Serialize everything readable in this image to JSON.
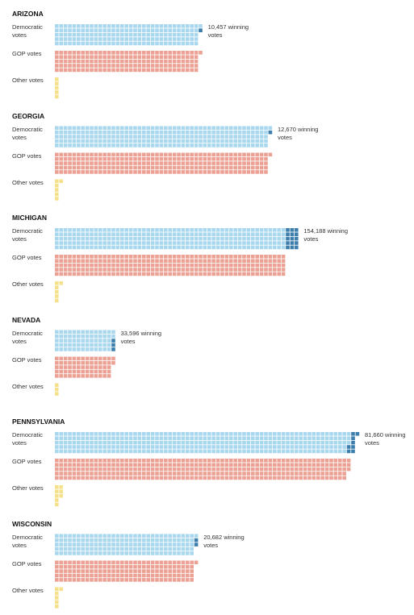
{
  "chart_data": [
    {
      "type": "waffle",
      "title": "ARIZONA",
      "square_value": 10000,
      "series": [
        {
          "name": "Democratic votes",
          "color": "#a9d7ee",
          "value": 1670000
        },
        {
          "name": "GOP votes",
          "color": "#eba194",
          "value": 1660000
        },
        {
          "name": "Other votes",
          "color": "#f5e18c",
          "value": 50000
        }
      ],
      "margin": 10457,
      "margin_label": "10,457 winning votes",
      "margin_color": "#3d7eac"
    },
    {
      "type": "waffle",
      "title": "GEORGIA",
      "square_value": 10000,
      "series": [
        {
          "name": "Democratic votes",
          "color": "#a9d7ee",
          "value": 2470000
        },
        {
          "name": "GOP votes",
          "color": "#eba194",
          "value": 2460000
        },
        {
          "name": "Other votes",
          "color": "#f5e18c",
          "value": 60000
        }
      ],
      "margin": 12670,
      "margin_label": "12,670 winning votes",
      "margin_color": "#3d7eac"
    },
    {
      "type": "waffle",
      "title": "MICHIGAN",
      "square_value": 10000,
      "series": [
        {
          "name": "Democratic votes",
          "color": "#a9d7ee",
          "value": 2800000
        },
        {
          "name": "GOP votes",
          "color": "#eba194",
          "value": 2650000
        },
        {
          "name": "Other votes",
          "color": "#f5e18c",
          "value": 60000
        }
      ],
      "margin": 154188,
      "margin_label": "154,188 winning votes",
      "margin_color": "#3d7eac"
    },
    {
      "type": "waffle",
      "title": "NEVADA",
      "square_value": 10000,
      "series": [
        {
          "name": "Democratic votes",
          "color": "#a9d7ee",
          "value": 700000
        },
        {
          "name": "GOP votes",
          "color": "#eba194",
          "value": 670000
        },
        {
          "name": "Other votes",
          "color": "#f5e18c",
          "value": 30000
        }
      ],
      "margin": 33596,
      "margin_label": "33,596 winning votes",
      "margin_color": "#3d7eac"
    },
    {
      "type": "waffle",
      "title": "PENNSYLVANIA",
      "square_value": 10000,
      "series": [
        {
          "name": "Democratic votes",
          "color": "#a9d7ee",
          "value": 3460000
        },
        {
          "name": "GOP votes",
          "color": "#eba194",
          "value": 3380000
        },
        {
          "name": "Other votes",
          "color": "#f5e18c",
          "value": 80000
        }
      ],
      "margin": 81660,
      "margin_label": "81,660 winning votes",
      "margin_color": "#3d7eac"
    },
    {
      "type": "waffle",
      "title": "WISCONSIN",
      "square_value": 10000,
      "series": [
        {
          "name": "Democratic votes",
          "color": "#a9d7ee",
          "value": 1630000
        },
        {
          "name": "GOP votes",
          "color": "#eba194",
          "value": 1610000
        },
        {
          "name": "Other votes",
          "color": "#f5e18c",
          "value": 60000
        }
      ],
      "margin": 20682,
      "margin_label": "20,682 winning votes",
      "margin_color": "#3d7eac"
    }
  ]
}
